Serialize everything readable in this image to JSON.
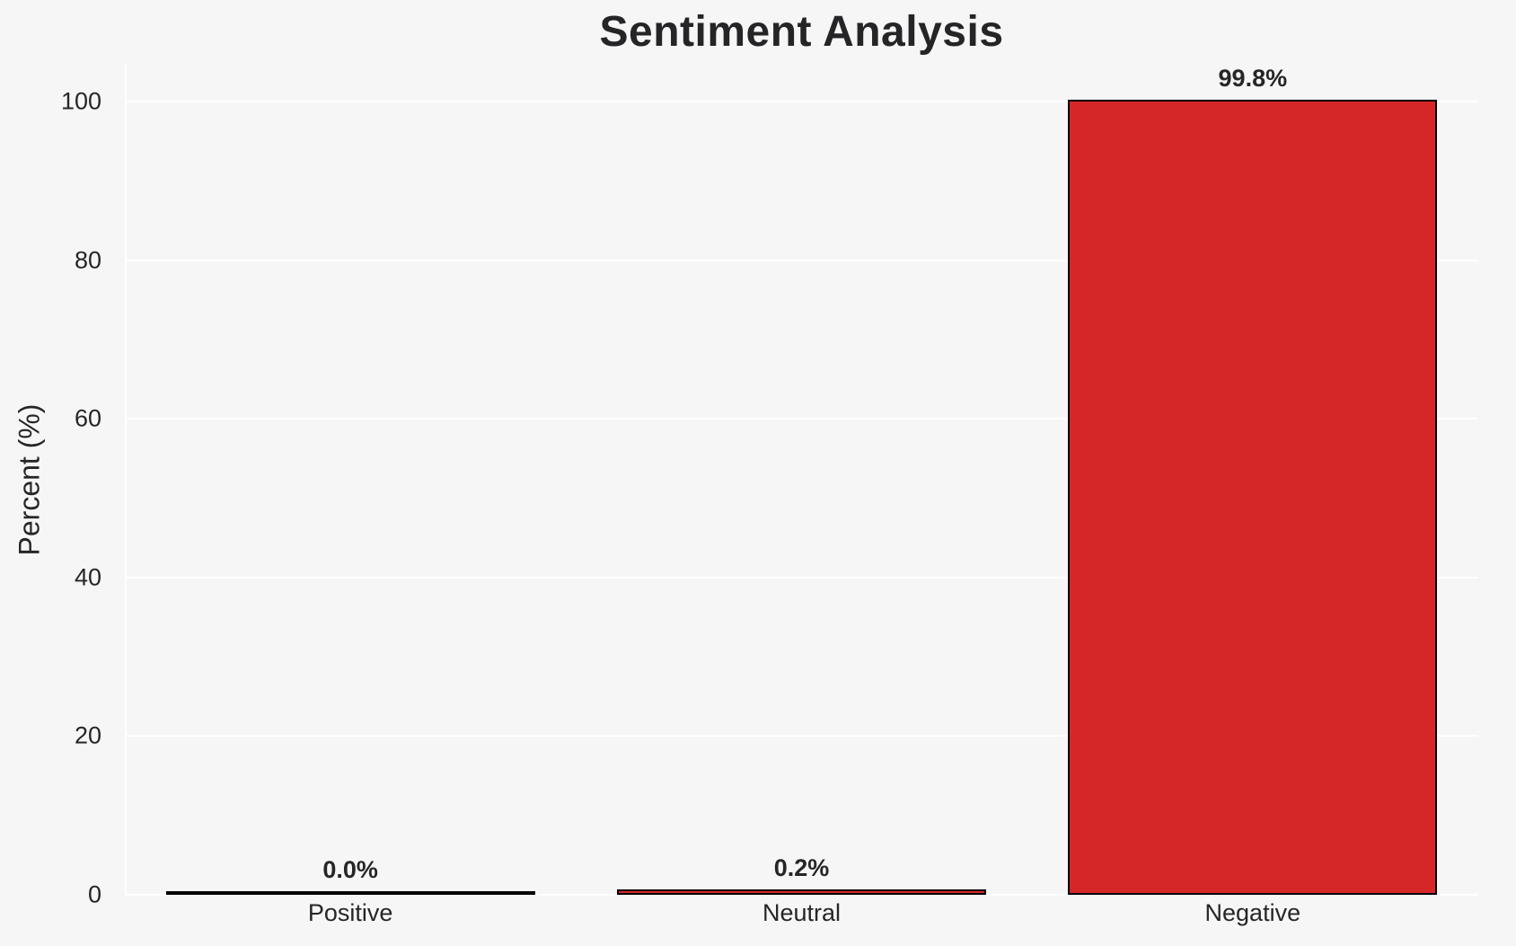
{
  "chart_data": {
    "type": "bar",
    "title": "Sentiment Analysis",
    "categories": [
      "Positive",
      "Neutral",
      "Negative"
    ],
    "values": [
      0.0,
      0.2,
      99.8
    ],
    "value_labels": [
      "0.0%",
      "0.2%",
      "99.8%"
    ],
    "xlabel": "",
    "ylabel": "Percent (%)",
    "ylim": [
      0,
      104.8
    ],
    "yticks": [
      0,
      20,
      40,
      60,
      80,
      100
    ],
    "ytick_labels": [
      "0",
      "20",
      "40",
      "60",
      "80",
      "100"
    ],
    "grid": true,
    "legend_position": "none",
    "colors": {
      "bar_fill": "#d62728",
      "bar_edge": "#000000",
      "background": "#f6f6f6",
      "gridline": "#ffffff",
      "text": "#262626"
    }
  }
}
